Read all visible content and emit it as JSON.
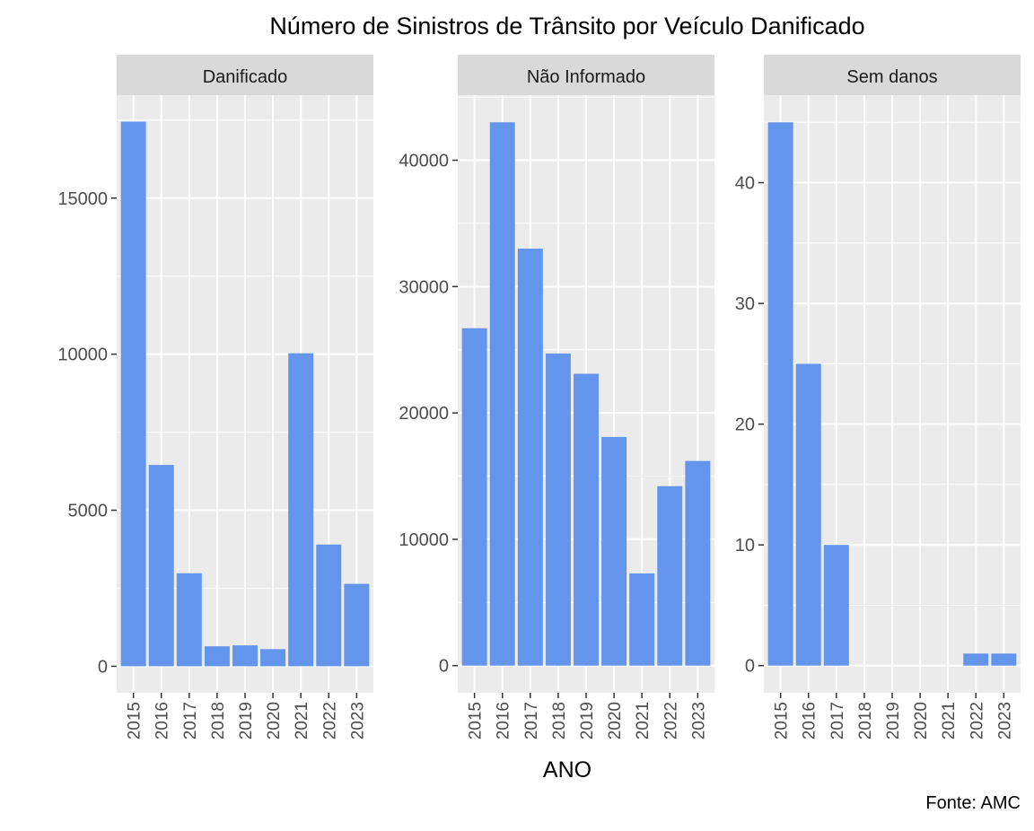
{
  "title": "Número de Sinistros de Trânsito por Veículo Danificado",
  "xlabel": "ANO",
  "caption": "Fonte: AMC",
  "colors": {
    "bar": "#6495ED",
    "panel_bg": "#EBEBEB",
    "strip_bg": "#D9D9D9",
    "grid": "#FFFFFF",
    "tick_text": "#4D4D4D",
    "text": "#000000"
  },
  "chart_data": {
    "type": "bar",
    "facets": "free y scales",
    "categories": [
      "2015",
      "2016",
      "2017",
      "2018",
      "2019",
      "2020",
      "2021",
      "2022",
      "2023"
    ],
    "panels": [
      {
        "strip": "Danificado",
        "values": [
          17450,
          6450,
          2980,
          640,
          670,
          550,
          10030,
          3900,
          2640
        ],
        "ylim": [
          -850,
          18300
        ],
        "yticks": [
          0,
          5000,
          10000,
          15000
        ],
        "ytick_labels": [
          "0",
          "5000",
          "10000",
          "15000"
        ]
      },
      {
        "strip": "Não Informado",
        "values": [
          26700,
          43000,
          33000,
          24700,
          23100,
          18100,
          7300,
          14200,
          16200
        ],
        "ylim": [
          -2150,
          45150
        ],
        "yticks": [
          0,
          10000,
          20000,
          30000,
          40000
        ],
        "ytick_labels": [
          "0",
          "10000",
          "20000",
          "30000",
          "40000"
        ]
      },
      {
        "strip": "Sem danos",
        "values": [
          45,
          25,
          10,
          0,
          0,
          0,
          0,
          1,
          1
        ],
        "ylim": [
          -2.25,
          47.25
        ],
        "yticks": [
          0,
          10,
          20,
          30,
          40
        ],
        "ytick_labels": [
          "0",
          "10",
          "20",
          "30",
          "40"
        ]
      }
    ]
  }
}
